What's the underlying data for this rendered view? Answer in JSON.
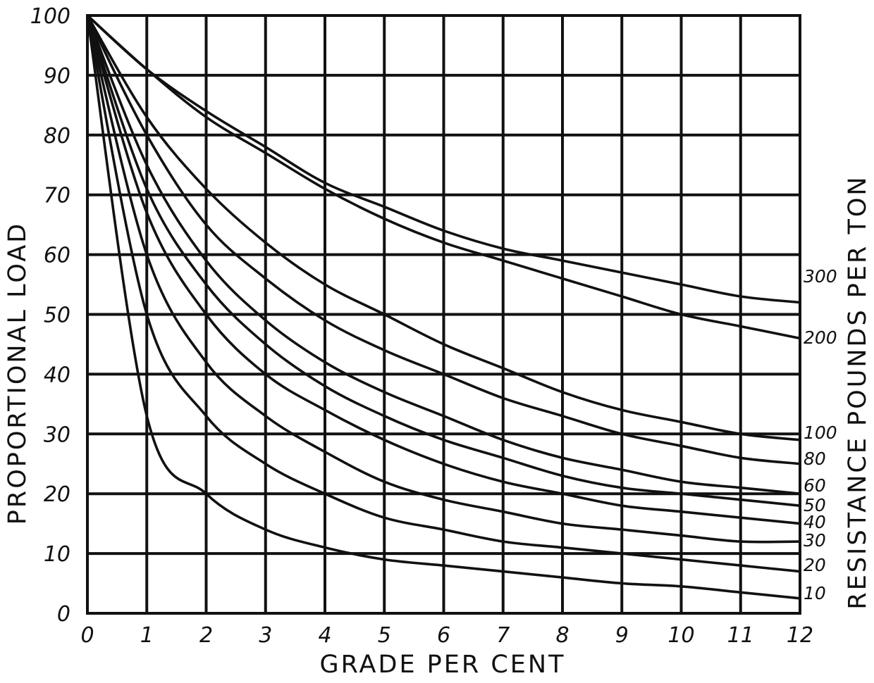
{
  "chart_data": {
    "type": "line",
    "title": "",
    "xlabel": "GRADE PER CENT",
    "ylabel": "PROPORTIONAL LOAD",
    "right_label": "RESISTANCE POUNDS PER TON",
    "xlim": [
      0,
      12
    ],
    "ylim": [
      0,
      100
    ],
    "x_ticks": [
      "0",
      "1",
      "2",
      "3",
      "4",
      "5",
      "6",
      "7",
      "8",
      "9",
      "10",
      "11",
      "12"
    ],
    "y_ticks": [
      "0",
      "10",
      "20",
      "30",
      "40",
      "50",
      "60",
      "70",
      "80",
      "90",
      "100"
    ],
    "grid": true,
    "x": [
      0,
      1,
      2,
      3,
      4,
      5,
      6,
      7,
      8,
      9,
      10,
      11,
      12
    ],
    "series": [
      {
        "name": "300",
        "values": [
          100,
          91,
          84,
          78,
          72,
          68,
          64,
          61,
          59,
          57,
          55,
          53,
          52
        ]
      },
      {
        "name": "200",
        "values": [
          100,
          91,
          83,
          77,
          71,
          66,
          62,
          59,
          56,
          53,
          50,
          48,
          46
        ]
      },
      {
        "name": "100",
        "values": [
          100,
          83,
          71,
          62,
          55,
          50,
          45,
          41,
          37,
          34,
          32,
          30,
          29
        ]
      },
      {
        "name": "80",
        "values": [
          100,
          80,
          65,
          56,
          49,
          44,
          40,
          36,
          33,
          30,
          28,
          26,
          25
        ]
      },
      {
        "name": "60",
        "values": [
          100,
          75,
          59,
          49,
          42,
          37,
          33,
          29,
          26,
          24,
          22,
          21,
          20
        ]
      },
      {
        "name": "50",
        "values": [
          100,
          71,
          55,
          45,
          38,
          33,
          29,
          26,
          23,
          21,
          20,
          19,
          18
        ]
      },
      {
        "name": "40",
        "values": [
          100,
          67,
          50,
          40,
          34,
          29,
          25,
          22,
          20,
          18,
          17,
          16,
          15
        ]
      },
      {
        "name": "30",
        "values": [
          100,
          60,
          42,
          33,
          27,
          22,
          19,
          17,
          15,
          14,
          13,
          12,
          12
        ]
      },
      {
        "name": "20",
        "values": [
          100,
          50,
          33,
          25,
          20,
          16,
          14,
          12,
          11,
          10,
          9,
          8,
          7
        ]
      },
      {
        "name": "10",
        "values": [
          100,
          33,
          20,
          14,
          11,
          9,
          8,
          7,
          6,
          5,
          4.5,
          3.5,
          2.5
        ]
      }
    ]
  }
}
